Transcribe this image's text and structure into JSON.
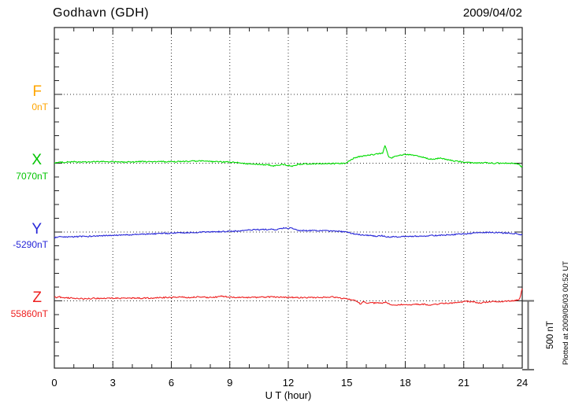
{
  "header": {
    "title": "Godhavn (GDH)",
    "date": "2009/04/02"
  },
  "chart_data": {
    "type": "line",
    "title": "Godhavn (GDH)",
    "date": "2009/04/02",
    "xlabel": "U T (hour)",
    "x_range": [
      0,
      24
    ],
    "x_major_ticks": [
      0,
      3,
      6,
      9,
      12,
      15,
      18,
      21,
      24
    ],
    "x_minor_step": 1,
    "grid": "dotted vertical lines every 3 hours; dotted horizontal line at each channel baseline",
    "y_scale": {
      "minor_tick_nT": 100,
      "baseline_separation_nT": 500
    },
    "scale_bar": {
      "label": "500 nT",
      "value_nT": 500
    },
    "plotted_note": "Plotted at 2009/05/03 00:52 UT",
    "series_note": "points are [UT hour, offset in nT from channel baseline]; F channel has no data trace",
    "series": [
      {
        "name": "F",
        "baseline_label": "0nT",
        "baseline_nT": 0,
        "color": "#FFA500",
        "points": []
      },
      {
        "name": "X",
        "baseline_label": "7070nT",
        "baseline_nT": 7070,
        "color": "#00DB00",
        "points": [
          [
            0,
            3
          ],
          [
            0.5,
            8
          ],
          [
            1,
            10
          ],
          [
            1.5,
            8
          ],
          [
            2,
            10
          ],
          [
            2.5,
            12
          ],
          [
            3,
            10
          ],
          [
            3.5,
            8
          ],
          [
            4,
            10
          ],
          [
            4.5,
            12
          ],
          [
            5,
            10
          ],
          [
            5.5,
            12
          ],
          [
            6,
            10
          ],
          [
            6.5,
            12
          ],
          [
            7,
            14
          ],
          [
            7.5,
            16
          ],
          [
            8,
            12
          ],
          [
            8.5,
            10
          ],
          [
            9,
            8
          ],
          [
            9.5,
            3
          ],
          [
            10,
            -5
          ],
          [
            10.5,
            -10
          ],
          [
            11,
            -12
          ],
          [
            11.3,
            -20
          ],
          [
            11.6,
            -10
          ],
          [
            12,
            -15
          ],
          [
            12.2,
            -22
          ],
          [
            12.5,
            -8
          ],
          [
            13,
            -5
          ],
          [
            13.5,
            -3
          ],
          [
            14,
            -4
          ],
          [
            14.5,
            -3
          ],
          [
            14.9,
            0
          ],
          [
            15.1,
            15
          ],
          [
            15.4,
            40
          ],
          [
            15.7,
            50
          ],
          [
            16,
            55
          ],
          [
            16.3,
            62
          ],
          [
            16.6,
            68
          ],
          [
            16.85,
            75
          ],
          [
            16.95,
            128
          ],
          [
            17.05,
            95
          ],
          [
            17.15,
            42
          ],
          [
            17.35,
            40
          ],
          [
            17.55,
            55
          ],
          [
            17.75,
            60
          ],
          [
            18,
            62
          ],
          [
            18.25,
            60
          ],
          [
            18.5,
            57
          ],
          [
            18.75,
            48
          ],
          [
            19,
            40
          ],
          [
            19.2,
            30
          ],
          [
            19.4,
            28
          ],
          [
            19.6,
            34
          ],
          [
            19.8,
            38
          ],
          [
            20,
            30
          ],
          [
            20.3,
            22
          ],
          [
            20.6,
            14
          ],
          [
            21,
            8
          ],
          [
            21.4,
            4
          ],
          [
            21.8,
            2
          ],
          [
            22.2,
            3
          ],
          [
            22.6,
            0
          ],
          [
            23,
            2
          ],
          [
            23.4,
            0
          ],
          [
            23.7,
            -3
          ],
          [
            23.85,
            -8
          ],
          [
            23.95,
            -28
          ],
          [
            24,
            -20
          ]
        ]
      },
      {
        "name": "Y",
        "baseline_label": "-5290nT",
        "baseline_nT": -5290,
        "color": "#2626D8",
        "points": [
          [
            0,
            -40
          ],
          [
            0.3,
            -36
          ],
          [
            0.6,
            -38
          ],
          [
            1,
            -34
          ],
          [
            1.5,
            -32
          ],
          [
            2,
            -30
          ],
          [
            2.5,
            -27
          ],
          [
            3,
            -25
          ],
          [
            3.5,
            -22
          ],
          [
            4,
            -19
          ],
          [
            4.5,
            -16
          ],
          [
            5,
            -13
          ],
          [
            5.5,
            -11
          ],
          [
            6,
            -8
          ],
          [
            6.5,
            -6
          ],
          [
            7,
            -3
          ],
          [
            7.5,
            -2
          ],
          [
            8,
            1
          ],
          [
            8.5,
            3
          ],
          [
            9,
            5
          ],
          [
            9.5,
            8
          ],
          [
            10,
            14
          ],
          [
            10.3,
            18
          ],
          [
            10.6,
            16
          ],
          [
            11,
            20
          ],
          [
            11.3,
            17
          ],
          [
            11.6,
            22
          ],
          [
            11.8,
            30
          ],
          [
            12,
            24
          ],
          [
            12.15,
            32
          ],
          [
            12.3,
            18
          ],
          [
            12.5,
            12
          ],
          [
            12.8,
            10
          ],
          [
            13,
            11
          ],
          [
            13.5,
            10
          ],
          [
            14,
            8
          ],
          [
            14.5,
            6
          ],
          [
            15,
            0
          ],
          [
            15.2,
            -8
          ],
          [
            15.5,
            -17
          ],
          [
            16,
            -23
          ],
          [
            16.5,
            -30
          ],
          [
            16.8,
            -26
          ],
          [
            17,
            -32
          ],
          [
            17.2,
            -38
          ],
          [
            17.5,
            -34
          ],
          [
            18,
            -33
          ],
          [
            18.5,
            -30
          ],
          [
            19,
            -28
          ],
          [
            19.5,
            -25
          ],
          [
            20,
            -22
          ],
          [
            20.5,
            -18
          ],
          [
            21,
            -13
          ],
          [
            21.5,
            -8
          ],
          [
            22,
            -4
          ],
          [
            22.2,
            -2
          ],
          [
            22.5,
            -4
          ],
          [
            23,
            -6
          ],
          [
            23.3,
            -8
          ],
          [
            23.6,
            -10
          ],
          [
            23.8,
            -14
          ],
          [
            24,
            -22
          ]
        ]
      },
      {
        "name": "Z",
        "baseline_label": "55860nT",
        "baseline_nT": 55860,
        "color": "#EE2020",
        "points": [
          [
            0,
            30
          ],
          [
            0.1,
            22
          ],
          [
            0.25,
            32
          ],
          [
            0.4,
            20
          ],
          [
            0.6,
            24
          ],
          [
            0.8,
            20
          ],
          [
            1,
            20
          ],
          [
            1.5,
            14
          ],
          [
            2,
            18
          ],
          [
            2.5,
            18
          ],
          [
            3,
            20
          ],
          [
            3.5,
            18
          ],
          [
            4,
            20
          ],
          [
            4.5,
            20
          ],
          [
            5,
            20
          ],
          [
            5.5,
            24
          ],
          [
            6,
            24
          ],
          [
            6.5,
            30
          ],
          [
            6.8,
            24
          ],
          [
            7.2,
            28
          ],
          [
            7.5,
            30
          ],
          [
            7.8,
            24
          ],
          [
            8.2,
            26
          ],
          [
            8.6,
            34
          ],
          [
            9,
            26
          ],
          [
            9.5,
            24
          ],
          [
            10,
            24
          ],
          [
            10.5,
            26
          ],
          [
            11,
            28
          ],
          [
            11.5,
            28
          ],
          [
            12,
            26
          ],
          [
            12.5,
            24
          ],
          [
            13,
            24
          ],
          [
            13.5,
            24
          ],
          [
            14,
            26
          ],
          [
            14.3,
            30
          ],
          [
            14.6,
            20
          ],
          [
            15,
            14
          ],
          [
            15.3,
            8
          ],
          [
            15.5,
            -4
          ],
          [
            15.7,
            -22
          ],
          [
            15.85,
            -6
          ],
          [
            16,
            -16
          ],
          [
            16.2,
            -10
          ],
          [
            16.4,
            -16
          ],
          [
            16.6,
            -12
          ],
          [
            16.8,
            -18
          ],
          [
            17,
            -12
          ],
          [
            17.2,
            -24
          ],
          [
            17.45,
            -34
          ],
          [
            17.7,
            -28
          ],
          [
            18,
            -24
          ],
          [
            18.3,
            -30
          ],
          [
            18.6,
            -24
          ],
          [
            19,
            -26
          ],
          [
            19.3,
            -30
          ],
          [
            19.6,
            -24
          ],
          [
            20,
            -18
          ],
          [
            20.4,
            -16
          ],
          [
            20.8,
            -12
          ],
          [
            21.1,
            -2
          ],
          [
            21.3,
            -8
          ],
          [
            21.5,
            -6
          ],
          [
            21.8,
            -16
          ],
          [
            22,
            -12
          ],
          [
            22.3,
            -8
          ],
          [
            22.6,
            -6
          ],
          [
            23,
            -6
          ],
          [
            23.3,
            -2
          ],
          [
            23.6,
            2
          ],
          [
            23.8,
            8
          ],
          [
            23.9,
            20
          ],
          [
            23.95,
            60
          ],
          [
            24,
            90
          ]
        ]
      }
    ]
  },
  "colors": {
    "frame": "#222222",
    "grid_dots": "#333333",
    "scale_bar": "#6e6e6e",
    "f_orange": "#FFA500",
    "x_green": "#00DB00",
    "y_blue": "#2626D8",
    "z_red": "#EE2020"
  }
}
